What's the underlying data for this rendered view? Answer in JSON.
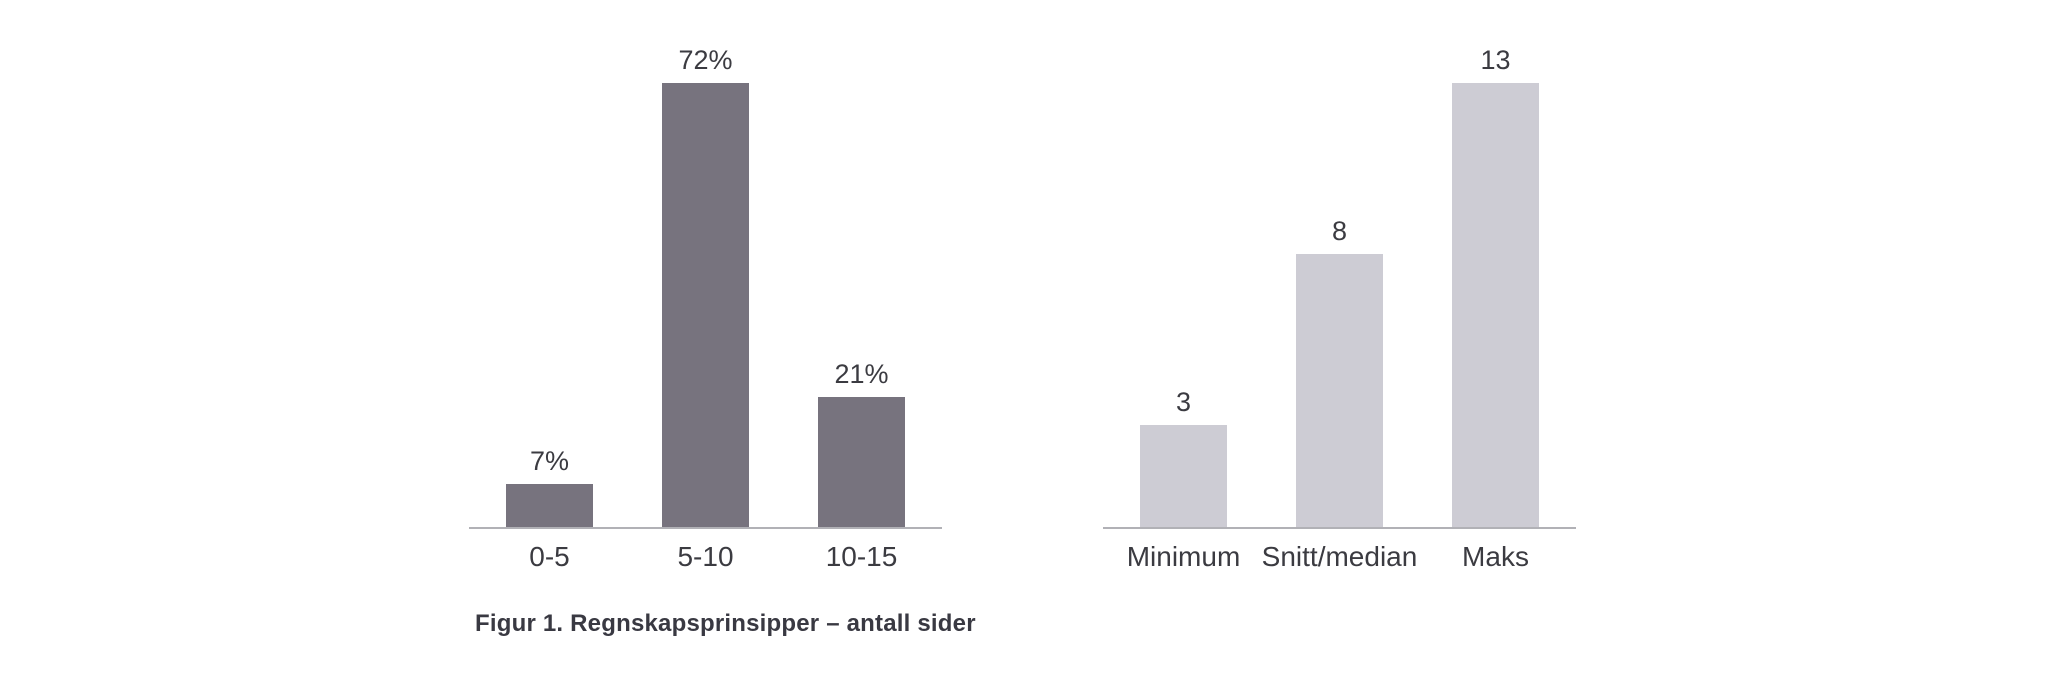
{
  "page": {
    "background": "#ffffff"
  },
  "colors": {
    "left_bar": "#77737E",
    "right_bar": "#CDCCD4",
    "axis_line": "#B1B1B6",
    "label_text": "#3B3B41",
    "caption_text": "#393942"
  },
  "chart_data": [
    {
      "type": "bar",
      "title": "Figur 1. Regnskapsprinsipper – antall sider",
      "categories": [
        "0-5",
        "5-10",
        "10-15"
      ],
      "values": [
        7,
        72,
        21
      ],
      "value_labels": [
        "7%",
        "72%",
        "21%"
      ],
      "bar_color": "#77737E",
      "xlabel": "",
      "ylabel": "",
      "ylim": [
        0,
        72
      ],
      "grid": false,
      "legend": "none",
      "value_labels_position": "above-bars",
      "y_axis_visible": false
    },
    {
      "type": "bar",
      "title": "",
      "categories": [
        "Minimum",
        "Snitt/median",
        "Maks"
      ],
      "values": [
        3,
        8,
        13
      ],
      "value_labels": [
        "3",
        "8",
        "13"
      ],
      "bar_color": "#CDCCD4",
      "xlabel": "",
      "ylabel": "",
      "ylim": [
        0,
        13
      ],
      "grid": false,
      "legend": "none",
      "value_labels_position": "above-bars",
      "y_axis_visible": false
    }
  ]
}
